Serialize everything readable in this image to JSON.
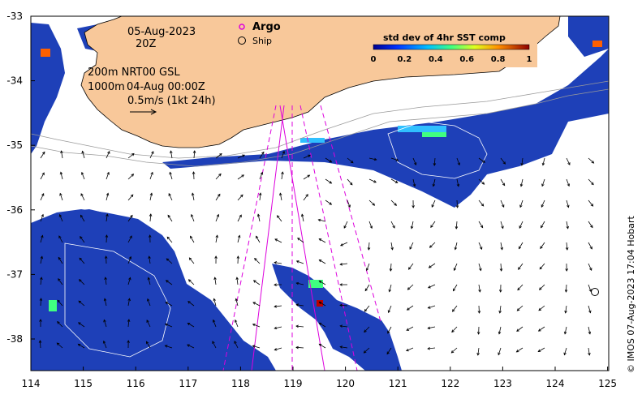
{
  "map": {
    "x_ticks": [
      "114",
      "115",
      "116",
      "117",
      "118",
      "119",
      "120",
      "121",
      "122",
      "123",
      "124",
      "125"
    ],
    "y_ticks": [
      "-33",
      "-34",
      "-35",
      "-36",
      "-37",
      "-38"
    ],
    "date": "05-Aug-2023",
    "time": "20Z",
    "contours": "200m  NRT00 GSL",
    "contours2_prefix": "1000m",
    "vector_time": "04-Aug 00:00Z",
    "scale_label": "0.5m/s (1kt 24h)",
    "legend": {
      "argo_label": "Argo",
      "ship_label": "Ship"
    },
    "colorbar": {
      "title": "std dev of 4hr SST comp",
      "ticks": [
        "0",
        "0.2",
        "0.4",
        "0.6",
        "0.8",
        "1"
      ]
    },
    "credit": "© IMOS 07-Aug-2023 17:04 Hobart",
    "colors": {
      "land": "#f8c89a",
      "low": "#1a3fb0",
      "argo": "#dd00dd"
    }
  }
}
